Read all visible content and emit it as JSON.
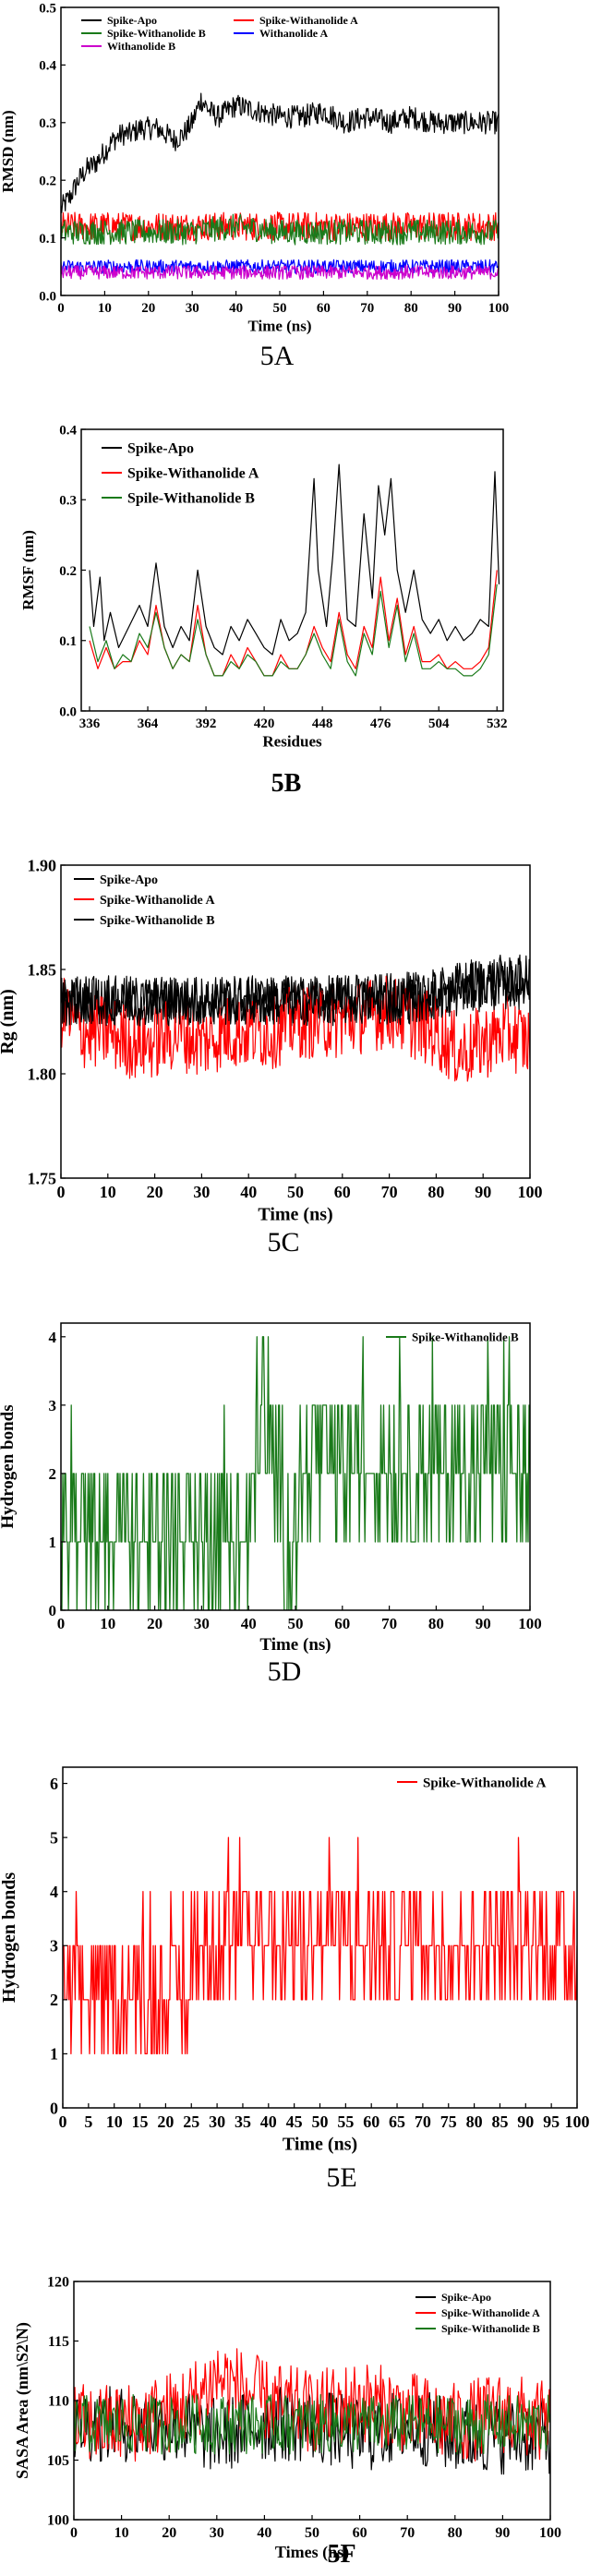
{
  "figure": {
    "panels": [
      "5A",
      "5B",
      "5C",
      "5D",
      "5E",
      "5F"
    ]
  },
  "chart_data": [
    {
      "id": "5A",
      "type": "line",
      "caption": "5A",
      "xlabel": "Time (ns)",
      "ylabel": "RMSD (nm)",
      "xlim": [
        0,
        100
      ],
      "ylim": [
        0.0,
        0.5
      ],
      "xticks": [
        0,
        10,
        20,
        30,
        40,
        50,
        60,
        70,
        80,
        90,
        100
      ],
      "yticks": [
        0.0,
        0.1,
        0.2,
        0.3,
        0.4,
        0.5
      ],
      "legend": "top, inside",
      "series": [
        {
          "name": "Spike-Apo",
          "color": "#000000",
          "x": [
            0,
            2,
            4,
            6,
            8,
            10,
            12,
            14,
            16,
            18,
            20,
            22,
            24,
            26,
            28,
            30,
            32,
            34,
            36,
            38,
            40,
            45,
            50,
            55,
            60,
            65,
            70,
            75,
            80,
            85,
            90,
            95,
            100
          ],
          "y": [
            0.15,
            0.17,
            0.2,
            0.22,
            0.23,
            0.25,
            0.27,
            0.28,
            0.28,
            0.29,
            0.29,
            0.29,
            0.28,
            0.27,
            0.28,
            0.3,
            0.34,
            0.32,
            0.31,
            0.32,
            0.33,
            0.32,
            0.31,
            0.31,
            0.32,
            0.3,
            0.31,
            0.3,
            0.31,
            0.3,
            0.3,
            0.3,
            0.3
          ]
        },
        {
          "name": "Spike-Withanolide A",
          "color": "#ff0000",
          "x": [
            0,
            10,
            20,
            30,
            40,
            50,
            60,
            70,
            80,
            90,
            100
          ],
          "y": [
            0.12,
            0.12,
            0.12,
            0.12,
            0.12,
            0.12,
            0.12,
            0.12,
            0.12,
            0.12,
            0.12
          ]
        },
        {
          "name": "Spike-Withanolide B",
          "color": "#1a7a1a",
          "x": [
            0,
            10,
            20,
            30,
            40,
            50,
            60,
            70,
            80,
            90,
            100
          ],
          "y": [
            0.11,
            0.11,
            0.11,
            0.11,
            0.12,
            0.11,
            0.11,
            0.11,
            0.11,
            0.11,
            0.11
          ]
        },
        {
          "name": "Withanolide A",
          "color": "#0000ff",
          "x": [
            0,
            10,
            20,
            30,
            40,
            50,
            60,
            70,
            80,
            90,
            100
          ],
          "y": [
            0.05,
            0.05,
            0.05,
            0.05,
            0.05,
            0.05,
            0.05,
            0.05,
            0.05,
            0.05,
            0.05
          ]
        },
        {
          "name": "Withanolide B",
          "color": "#cc00cc",
          "x": [
            0,
            10,
            20,
            30,
            40,
            50,
            60,
            70,
            80,
            90,
            100
          ],
          "y": [
            0.04,
            0.04,
            0.04,
            0.04,
            0.04,
            0.04,
            0.04,
            0.04,
            0.04,
            0.04,
            0.04
          ]
        }
      ]
    },
    {
      "id": "5B",
      "type": "line",
      "caption": "5B",
      "xlabel": "Residues",
      "ylabel": "RMSF (nm)",
      "xlim": [
        332,
        535
      ],
      "ylim": [
        0.0,
        0.4
      ],
      "xticks": [
        336,
        364,
        392,
        420,
        448,
        476,
        504,
        532
      ],
      "yticks": [
        0.0,
        0.1,
        0.2,
        0.3,
        0.4
      ],
      "legend": "top-left",
      "series": [
        {
          "name": "Spike-Apo",
          "color": "#000000",
          "x": [
            336,
            338,
            341,
            343,
            346,
            350,
            355,
            360,
            364,
            368,
            372,
            376,
            380,
            384,
            388,
            392,
            396,
            400,
            404,
            408,
            412,
            416,
            420,
            424,
            428,
            432,
            436,
            440,
            444,
            446,
            450,
            453,
            456,
            460,
            464,
            468,
            472,
            475,
            478,
            481,
            484,
            488,
            492,
            496,
            500,
            504,
            508,
            512,
            516,
            520,
            524,
            528,
            531,
            533
          ],
          "y": [
            0.2,
            0.12,
            0.19,
            0.1,
            0.14,
            0.09,
            0.12,
            0.15,
            0.12,
            0.21,
            0.12,
            0.09,
            0.12,
            0.1,
            0.2,
            0.12,
            0.09,
            0.08,
            0.12,
            0.1,
            0.13,
            0.11,
            0.09,
            0.08,
            0.13,
            0.1,
            0.11,
            0.14,
            0.33,
            0.2,
            0.12,
            0.22,
            0.35,
            0.13,
            0.12,
            0.28,
            0.16,
            0.32,
            0.25,
            0.33,
            0.2,
            0.14,
            0.2,
            0.13,
            0.11,
            0.13,
            0.1,
            0.12,
            0.1,
            0.11,
            0.13,
            0.12,
            0.34,
            0.18
          ]
        },
        {
          "name": "Spike-Withanolide A",
          "color": "#ff0000",
          "x": [
            336,
            340,
            344,
            348,
            352,
            356,
            360,
            364,
            368,
            372,
            376,
            380,
            384,
            388,
            392,
            396,
            400,
            404,
            408,
            412,
            416,
            420,
            424,
            428,
            432,
            436,
            440,
            444,
            448,
            452,
            456,
            460,
            464,
            468,
            472,
            476,
            480,
            484,
            488,
            492,
            496,
            500,
            504,
            508,
            512,
            516,
            520,
            524,
            528,
            532
          ],
          "y": [
            0.1,
            0.06,
            0.09,
            0.06,
            0.07,
            0.07,
            0.1,
            0.08,
            0.15,
            0.09,
            0.06,
            0.08,
            0.07,
            0.15,
            0.08,
            0.05,
            0.05,
            0.08,
            0.06,
            0.09,
            0.07,
            0.05,
            0.05,
            0.08,
            0.06,
            0.06,
            0.08,
            0.12,
            0.09,
            0.07,
            0.14,
            0.08,
            0.06,
            0.12,
            0.09,
            0.19,
            0.1,
            0.16,
            0.08,
            0.12,
            0.07,
            0.07,
            0.08,
            0.06,
            0.07,
            0.06,
            0.06,
            0.07,
            0.09,
            0.2
          ]
        },
        {
          "name": "Spile-Withanolide B",
          "color": "#1a7a1a",
          "x": [
            336,
            340,
            344,
            348,
            352,
            356,
            360,
            364,
            368,
            372,
            376,
            380,
            384,
            388,
            392,
            396,
            400,
            404,
            408,
            412,
            416,
            420,
            424,
            428,
            432,
            436,
            440,
            444,
            448,
            452,
            456,
            460,
            464,
            468,
            472,
            476,
            480,
            484,
            488,
            492,
            496,
            500,
            504,
            508,
            512,
            516,
            520,
            524,
            528,
            532
          ],
          "y": [
            0.12,
            0.07,
            0.1,
            0.06,
            0.08,
            0.07,
            0.11,
            0.09,
            0.14,
            0.09,
            0.06,
            0.08,
            0.07,
            0.13,
            0.08,
            0.05,
            0.05,
            0.07,
            0.06,
            0.08,
            0.07,
            0.05,
            0.05,
            0.07,
            0.06,
            0.06,
            0.08,
            0.11,
            0.08,
            0.06,
            0.13,
            0.07,
            0.05,
            0.11,
            0.08,
            0.17,
            0.09,
            0.15,
            0.07,
            0.11,
            0.06,
            0.06,
            0.07,
            0.06,
            0.06,
            0.05,
            0.05,
            0.06,
            0.08,
            0.18
          ]
        }
      ]
    },
    {
      "id": "5C",
      "type": "line",
      "caption": "5C",
      "xlabel": "Time (ns)",
      "ylabel": "Rg (nm)",
      "xlim": [
        0,
        100
      ],
      "ylim": [
        1.75,
        1.9
      ],
      "xticks": [
        0,
        10,
        20,
        30,
        40,
        50,
        60,
        70,
        80,
        90,
        100
      ],
      "yticks": [
        1.75,
        1.8,
        1.85,
        1.9
      ],
      "legend": "top-left",
      "series": [
        {
          "name": "Spike-Apo",
          "color": "#000000",
          "x": [
            0,
            10,
            20,
            30,
            40,
            50,
            60,
            70,
            80,
            85,
            90,
            95,
            100
          ],
          "y": [
            1.835,
            1.835,
            1.835,
            1.835,
            1.835,
            1.835,
            1.836,
            1.836,
            1.838,
            1.842,
            1.845,
            1.845,
            1.845
          ]
        },
        {
          "name": "Spike-Withanolide A",
          "color": "#ff0000",
          "x": [
            0,
            5,
            10,
            15,
            20,
            25,
            30,
            35,
            40,
            45,
            50,
            55,
            60,
            65,
            70,
            75,
            80,
            85,
            90,
            95,
            100
          ],
          "y": [
            1.83,
            1.82,
            1.82,
            1.815,
            1.815,
            1.82,
            1.815,
            1.82,
            1.82,
            1.82,
            1.825,
            1.825,
            1.825,
            1.828,
            1.83,
            1.825,
            1.82,
            1.81,
            1.815,
            1.82,
            1.815
          ]
        },
        {
          "name": "Spike-Withanolide B",
          "color": "#000000",
          "x": [
            0,
            10,
            20,
            30,
            40,
            50,
            60,
            70,
            80,
            90,
            100
          ],
          "y": [
            1.835,
            1.835,
            1.835,
            1.835,
            1.835,
            1.835,
            1.835,
            1.835,
            1.837,
            1.842,
            1.843
          ]
        }
      ]
    },
    {
      "id": "5D",
      "type": "line",
      "caption": "5D",
      "xlabel": "Time (ns)",
      "ylabel": "Hydrogen bonds",
      "xlim": [
        0,
        100
      ],
      "ylim": [
        0,
        4.2
      ],
      "xticks": [
        0,
        10,
        20,
        30,
        40,
        50,
        60,
        70,
        80,
        90,
        100
      ],
      "yticks": [
        0,
        1,
        2,
        3,
        4
      ],
      "legend": "top-right",
      "series": [
        {
          "name": "Spike-Withanolide B",
          "color": "#1a7a1a",
          "x": [
            0,
            10,
            20,
            30,
            40,
            42,
            45,
            50,
            52,
            60,
            70,
            80,
            90,
            100
          ],
          "y": [
            1,
            1,
            1,
            1,
            1,
            3,
            2,
            1,
            2,
            2,
            2,
            2,
            2,
            2
          ]
        }
      ]
    },
    {
      "id": "5E",
      "type": "line",
      "caption": "5E",
      "xlabel": "Time (ns)",
      "ylabel": "Hydrogen bonds",
      "xlim": [
        0,
        100
      ],
      "ylim": [
        0,
        6.3
      ],
      "xticks": [
        0,
        5,
        10,
        15,
        20,
        25,
        30,
        35,
        40,
        45,
        50,
        55,
        60,
        65,
        70,
        75,
        80,
        85,
        90,
        95,
        100
      ],
      "yticks": [
        0,
        1,
        2,
        3,
        4,
        5,
        6
      ],
      "legend": "top-right",
      "series": [
        {
          "name": "Spike-Withanolide A",
          "color": "#ff0000",
          "x": [
            0,
            5,
            10,
            15,
            20,
            25,
            30,
            40,
            50,
            60,
            70,
            80,
            90,
            100
          ],
          "y": [
            2,
            1.5,
            1.5,
            1.5,
            1.5,
            2.5,
            2.5,
            2.5,
            2.5,
            2.5,
            2.5,
            2.5,
            2.5,
            2.5
          ]
        }
      ]
    },
    {
      "id": "5F",
      "type": "line",
      "caption": "5F",
      "xlabel": "Times (ns)",
      "ylabel": "SASA Area (nm\\S2\\N)",
      "xlim": [
        0,
        100
      ],
      "ylim": [
        100,
        120
      ],
      "xticks": [
        0,
        10,
        20,
        30,
        40,
        50,
        60,
        70,
        80,
        90,
        100
      ],
      "yticks": [
        100,
        105,
        110,
        115,
        120
      ],
      "legend": "top-right",
      "series": [
        {
          "name": "Spike-Apo",
          "color": "#000000",
          "x": [
            0,
            10,
            20,
            30,
            40,
            50,
            60,
            70,
            80,
            90,
            100
          ],
          "y": [
            108,
            108,
            108,
            107,
            108,
            108,
            107,
            108,
            107,
            107,
            107
          ]
        },
        {
          "name": "Spike-Withanolide A",
          "color": "#ff0000",
          "x": [
            0,
            10,
            20,
            25,
            30,
            35,
            40,
            50,
            60,
            70,
            80,
            90,
            100
          ],
          "y": [
            108,
            108,
            109,
            110,
            112,
            111,
            110,
            109,
            110,
            109,
            108,
            109,
            108
          ]
        },
        {
          "name": "Spike-Withanolide B",
          "color": "#1a7a1a",
          "x": [
            0,
            10,
            20,
            30,
            40,
            50,
            60,
            70,
            80,
            90,
            100
          ],
          "y": [
            108,
            108,
            108,
            108,
            108,
            108,
            108,
            108,
            108,
            108,
            108
          ]
        }
      ]
    }
  ]
}
